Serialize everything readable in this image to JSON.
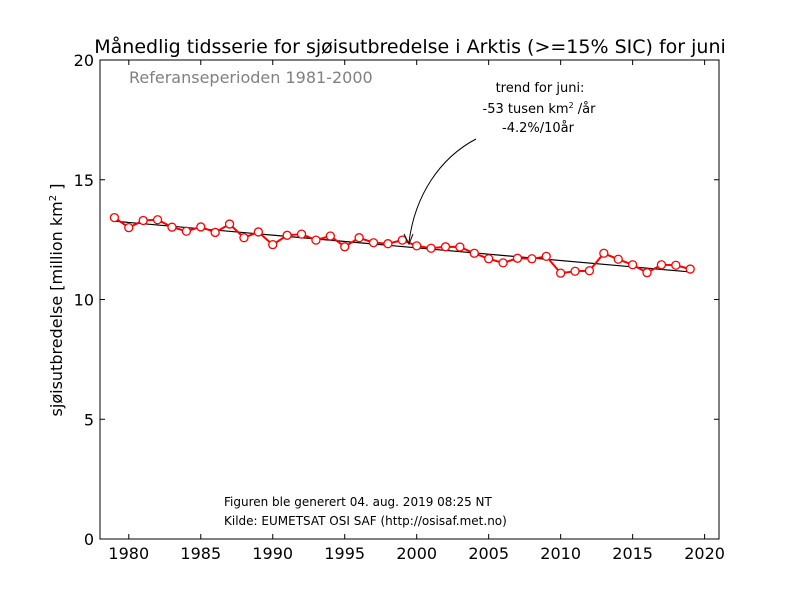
{
  "chart_data": {
    "type": "line",
    "title": "Månedlig tidsserie for sjøisutbredelse i Arktis (>=15% SIC) for juni",
    "reference_period": "Referanseperioden 1981-2000",
    "ylabel_main": "sjøisutbredelse [million km",
    "ylabel_sup": "2",
    "ylabel_end": " ]",
    "xlim": [
      1978,
      2021
    ],
    "ylim": [
      0,
      20
    ],
    "xticks": [
      1980,
      1985,
      1990,
      1995,
      2000,
      2005,
      2010,
      2015,
      2020
    ],
    "yticks": [
      0,
      5,
      10,
      15,
      20
    ],
    "series": [
      {
        "color": "#ff0000",
        "marker": "circle-open",
        "x": [
          1979,
          1980,
          1981,
          1982,
          1983,
          1984,
          1985,
          1986,
          1987,
          1988,
          1989,
          1990,
          1991,
          1992,
          1993,
          1994,
          1995,
          1996,
          1997,
          1998,
          1999,
          2000,
          2001,
          2002,
          2003,
          2004,
          2005,
          2006,
          2007,
          2008,
          2009,
          2010,
          2011,
          2012,
          2013,
          2014,
          2015,
          2016,
          2017,
          2018,
          2019
        ],
        "y": [
          13.42,
          13.0,
          13.3,
          13.33,
          13.02,
          12.85,
          13.03,
          12.8,
          13.15,
          12.58,
          12.82,
          12.29,
          12.68,
          12.73,
          12.48,
          12.65,
          12.2,
          12.58,
          12.37,
          12.33,
          12.48,
          12.24,
          12.14,
          12.2,
          12.19,
          11.93,
          11.7,
          11.53,
          11.72,
          11.7,
          11.8,
          11.1,
          11.18,
          11.2,
          11.93,
          11.68,
          11.45,
          11.12,
          11.45,
          11.43,
          11.27
        ]
      }
    ],
    "trend": {
      "color": "#000000",
      "x": [
        1979,
        2019
      ],
      "y": [
        13.27,
        11.15
      ]
    },
    "annotation": {
      "lines": [
        "trend for juni:",
        "-53 tusen km",
        "2",
        " /år",
        "-4.2%/10år"
      ],
      "arrow_target": {
        "x": 1999.5,
        "y": 12.35
      }
    },
    "footer": {
      "generated": "Figuren ble generert 04. aug. 2019 08:25 NT",
      "source": "Kilde: EUMETSAT OSI SAF (http://osisaf.met.no)"
    }
  }
}
